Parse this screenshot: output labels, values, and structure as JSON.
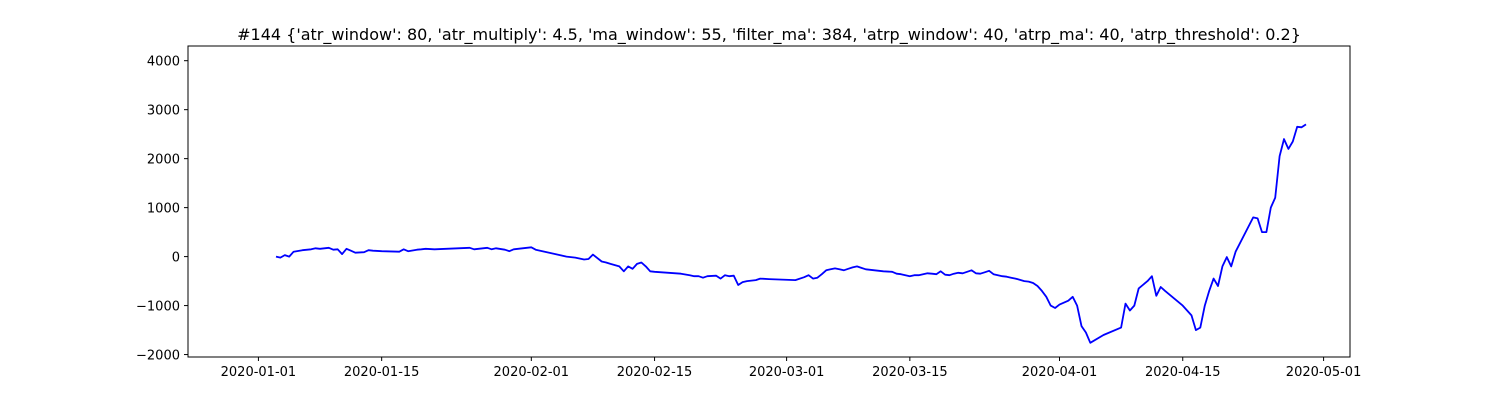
{
  "chart_data": {
    "type": "line",
    "title": "#144 {'atr_window': 80, 'atr_multiply': 4.5, 'ma_window': 55, 'filter_ma': 384, 'atrp_window': 40, 'atrp_ma': 40, 'atrp_threshold': 0.2}",
    "xlabel": "",
    "ylabel": "",
    "grid": false,
    "legend": "none",
    "xlim": [
      "2019-12-24",
      "2020-05-04"
    ],
    "ylim": [
      -2050,
      4300
    ],
    "x_ticks": [
      "2020-01-01",
      "2020-01-15",
      "2020-02-01",
      "2020-02-15",
      "2020-03-01",
      "2020-03-15",
      "2020-04-01",
      "2020-04-15",
      "2020-05-01"
    ],
    "y_ticks": [
      -2000,
      -1000,
      0,
      1000,
      2000,
      3000,
      4000
    ],
    "y_tick_labels": [
      "−2000",
      "−1000",
      "0",
      "1000",
      "2000",
      "3000",
      "4000"
    ],
    "series": [
      {
        "color": "#0000ff",
        "points": [
          [
            "2020-01-03",
            0
          ],
          [
            "2020-01-03T12:00",
            -20
          ],
          [
            "2020-01-04",
            30
          ],
          [
            "2020-01-04T12:00",
            0
          ],
          [
            "2020-01-05",
            100
          ],
          [
            "2020-01-06",
            130
          ],
          [
            "2020-01-07",
            150
          ],
          [
            "2020-01-07T12:00",
            170
          ],
          [
            "2020-01-08",
            160
          ],
          [
            "2020-01-09",
            180
          ],
          [
            "2020-01-09T12:00",
            140
          ],
          [
            "2020-01-10",
            150
          ],
          [
            "2020-01-10T12:00",
            50
          ],
          [
            "2020-01-11",
            160
          ],
          [
            "2020-01-11T12:00",
            120
          ],
          [
            "2020-01-12",
            80
          ],
          [
            "2020-01-13",
            90
          ],
          [
            "2020-01-13T12:00",
            130
          ],
          [
            "2020-01-14",
            120
          ],
          [
            "2020-01-15",
            110
          ],
          [
            "2020-01-17",
            100
          ],
          [
            "2020-01-17T12:00",
            150
          ],
          [
            "2020-01-18",
            110
          ],
          [
            "2020-01-19",
            140
          ],
          [
            "2020-01-19T12:00",
            150
          ],
          [
            "2020-01-20",
            160
          ],
          [
            "2020-01-21",
            150
          ],
          [
            "2020-01-25",
            180
          ],
          [
            "2020-01-25T12:00",
            150
          ],
          [
            "2020-01-26",
            160
          ],
          [
            "2020-01-27",
            180
          ],
          [
            "2020-01-27T12:00",
            150
          ],
          [
            "2020-01-28",
            170
          ],
          [
            "2020-01-29",
            140
          ],
          [
            "2020-01-29T12:00",
            110
          ],
          [
            "2020-01-30",
            150
          ],
          [
            "2020-01-31",
            170
          ],
          [
            "2020-02-01",
            190
          ],
          [
            "2020-02-01T12:00",
            140
          ],
          [
            "2020-02-05",
            0
          ],
          [
            "2020-02-06",
            -20
          ],
          [
            "2020-02-07",
            -60
          ],
          [
            "2020-02-07T12:00",
            -50
          ],
          [
            "2020-02-08",
            40
          ],
          [
            "2020-02-09",
            -100
          ],
          [
            "2020-02-09T12:00",
            -120
          ],
          [
            "2020-02-10",
            -150
          ],
          [
            "2020-02-11",
            -200
          ],
          [
            "2020-02-11T12:00",
            -300
          ],
          [
            "2020-02-12",
            -200
          ],
          [
            "2020-02-12T12:00",
            -250
          ],
          [
            "2020-02-13",
            -150
          ],
          [
            "2020-02-13T12:00",
            -120
          ],
          [
            "2020-02-14",
            -200
          ],
          [
            "2020-02-14T12:00",
            -300
          ],
          [
            "2020-02-15",
            -310
          ],
          [
            "2020-02-18",
            -350
          ],
          [
            "2020-02-19",
            -380
          ],
          [
            "2020-02-19T12:00",
            -400
          ],
          [
            "2020-02-20",
            -400
          ],
          [
            "2020-02-20T12:00",
            -430
          ],
          [
            "2020-02-21",
            -400
          ],
          [
            "2020-02-22",
            -390
          ],
          [
            "2020-02-22T12:00",
            -450
          ],
          [
            "2020-02-23",
            -380
          ],
          [
            "2020-02-23T12:00",
            -400
          ],
          [
            "2020-02-24",
            -390
          ],
          [
            "2020-02-24T12:00",
            -580
          ],
          [
            "2020-02-25",
            -520
          ],
          [
            "2020-02-25T12:00",
            -500
          ],
          [
            "2020-02-26",
            -490
          ],
          [
            "2020-02-26T12:00",
            -480
          ],
          [
            "2020-02-27",
            -450
          ],
          [
            "2020-02-28",
            -460
          ],
          [
            "2020-03-02",
            -480
          ],
          [
            "2020-03-03",
            -420
          ],
          [
            "2020-03-03T12:00",
            -380
          ],
          [
            "2020-03-04",
            -450
          ],
          [
            "2020-03-04T12:00",
            -430
          ],
          [
            "2020-03-05",
            -360
          ],
          [
            "2020-03-05T12:00",
            -280
          ],
          [
            "2020-03-06",
            -260
          ],
          [
            "2020-03-06T12:00",
            -240
          ],
          [
            "2020-03-07",
            -260
          ],
          [
            "2020-03-07T12:00",
            -280
          ],
          [
            "2020-03-08",
            -250
          ],
          [
            "2020-03-08T12:00",
            -220
          ],
          [
            "2020-03-09",
            -200
          ],
          [
            "2020-03-09T12:00",
            -230
          ],
          [
            "2020-03-10",
            -260
          ],
          [
            "2020-03-12",
            -300
          ],
          [
            "2020-03-13",
            -310
          ],
          [
            "2020-03-13T12:00",
            -350
          ],
          [
            "2020-03-14",
            -360
          ],
          [
            "2020-03-15",
            -400
          ],
          [
            "2020-03-15T12:00",
            -380
          ],
          [
            "2020-03-16",
            -380
          ],
          [
            "2020-03-17",
            -340
          ],
          [
            "2020-03-17T12:00",
            -350
          ],
          [
            "2020-03-18",
            -360
          ],
          [
            "2020-03-18T12:00",
            -300
          ],
          [
            "2020-03-19",
            -370
          ],
          [
            "2020-03-19T12:00",
            -380
          ],
          [
            "2020-03-20",
            -350
          ],
          [
            "2020-03-20T12:00",
            -330
          ],
          [
            "2020-03-21",
            -340
          ],
          [
            "2020-03-22",
            -280
          ],
          [
            "2020-03-22T12:00",
            -340
          ],
          [
            "2020-03-23",
            -350
          ],
          [
            "2020-03-23T12:00",
            -320
          ],
          [
            "2020-03-24",
            -290
          ],
          [
            "2020-03-24T12:00",
            -360
          ],
          [
            "2020-03-25",
            -380
          ],
          [
            "2020-03-25T12:00",
            -400
          ],
          [
            "2020-03-26",
            -410
          ],
          [
            "2020-03-26T12:00",
            -430
          ],
          [
            "2020-03-27",
            -450
          ],
          [
            "2020-03-28",
            -500
          ],
          [
            "2020-03-28T12:00",
            -510
          ],
          [
            "2020-03-29",
            -540
          ],
          [
            "2020-03-29T12:00",
            -600
          ],
          [
            "2020-03-30",
            -700
          ],
          [
            "2020-03-30T12:00",
            -820
          ],
          [
            "2020-03-31",
            -1000
          ],
          [
            "2020-03-31T12:00",
            -1050
          ],
          [
            "2020-04-01",
            -980
          ],
          [
            "2020-04-02",
            -900
          ],
          [
            "2020-04-02T12:00",
            -820
          ],
          [
            "2020-04-03",
            -1000
          ],
          [
            "2020-04-03T12:00",
            -1420
          ],
          [
            "2020-04-04",
            -1550
          ],
          [
            "2020-04-04T12:00",
            -1760
          ],
          [
            "2020-04-06",
            -1600
          ],
          [
            "2020-04-08",
            -1450
          ],
          [
            "2020-04-08T12:00",
            -960
          ],
          [
            "2020-04-09",
            -1100
          ],
          [
            "2020-04-09T12:00",
            -1000
          ],
          [
            "2020-04-10",
            -650
          ],
          [
            "2020-04-11",
            -500
          ],
          [
            "2020-04-11T12:00",
            -400
          ],
          [
            "2020-04-12",
            -800
          ],
          [
            "2020-04-12T12:00",
            -620
          ],
          [
            "2020-04-13",
            -700
          ],
          [
            "2020-04-15",
            -1000
          ],
          [
            "2020-04-16",
            -1200
          ],
          [
            "2020-04-16T12:00",
            -1500
          ],
          [
            "2020-04-17",
            -1450
          ],
          [
            "2020-04-17T12:00",
            -1000
          ],
          [
            "2020-04-18",
            -700
          ],
          [
            "2020-04-18T12:00",
            -450
          ],
          [
            "2020-04-19",
            -600
          ],
          [
            "2020-04-19T12:00",
            -200
          ],
          [
            "2020-04-20",
            -10
          ],
          [
            "2020-04-20T12:00",
            -200
          ],
          [
            "2020-04-21",
            100
          ],
          [
            "2020-04-23",
            800
          ],
          [
            "2020-04-23T12:00",
            780
          ],
          [
            "2020-04-24",
            500
          ],
          [
            "2020-04-24T12:00",
            500
          ],
          [
            "2020-04-25",
            1000
          ],
          [
            "2020-04-25T12:00",
            1200
          ],
          [
            "2020-04-26",
            2050
          ],
          [
            "2020-04-26T12:00",
            2400
          ],
          [
            "2020-04-27",
            2200
          ],
          [
            "2020-04-27T12:00",
            2350
          ],
          [
            "2020-04-28",
            2650
          ],
          [
            "2020-04-28T12:00",
            2640
          ],
          [
            "2020-04-29",
            2700
          ]
        ]
      }
    ]
  }
}
